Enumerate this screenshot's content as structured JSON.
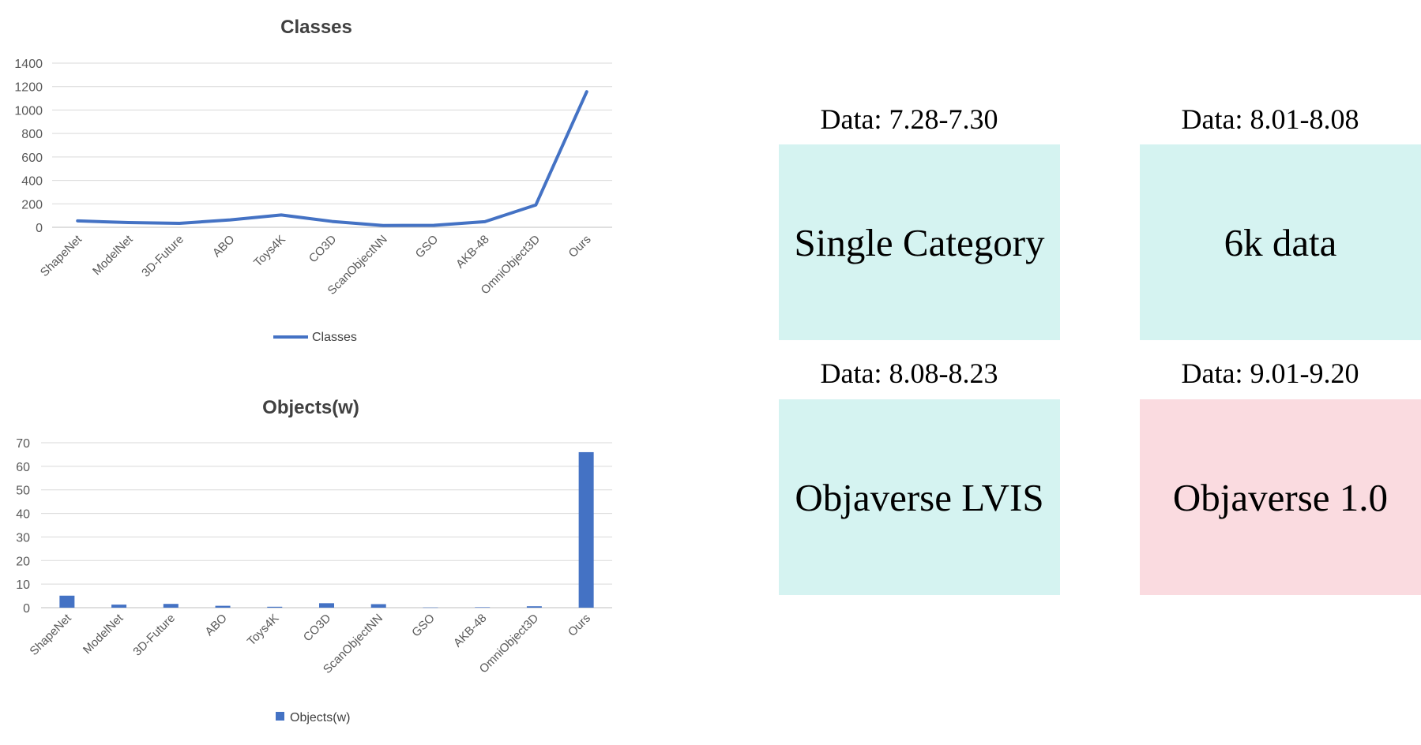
{
  "chart_data": [
    {
      "type": "line",
      "title": "Classes",
      "categories": [
        "ShapeNet",
        "ModelNet",
        "3D-Future",
        "ABO",
        "Toys4K",
        "CO3D",
        "ScanObjectNN",
        "GSO",
        "AKB-48",
        "OmniObject3D",
        "Ours"
      ],
      "series": [
        {
          "name": "Classes",
          "values": [
            55,
            40,
            34,
            63,
            105,
            50,
            15,
            17,
            48,
            190,
            1156
          ]
        }
      ],
      "yticks": [
        "0",
        "200",
        "400",
        "600",
        "800",
        "1000",
        "1200",
        "1400"
      ],
      "ylim": [
        0,
        1400
      ],
      "legend": "bottom",
      "grid": true,
      "color": "#4472c4"
    },
    {
      "type": "bar",
      "title": "Objects(w)",
      "categories": [
        "ShapeNet",
        "ModelNet",
        "3D-Future",
        "ABO",
        "Toys4K",
        "CO3D",
        "ScanObjectNN",
        "GSO",
        "AKB-48",
        "OmniObject3D",
        "Ours"
      ],
      "series": [
        {
          "name": "Objects(w)",
          "values": [
            5.1,
            1.3,
            1.6,
            0.8,
            0.4,
            1.9,
            1.5,
            0.1,
            0.2,
            0.6,
            66
          ]
        }
      ],
      "yticks": [
        "0",
        "10",
        "20",
        "30",
        "40",
        "50",
        "60",
        "70"
      ],
      "ylim": [
        0,
        70
      ],
      "legend": "bottom",
      "grid": true,
      "color": "#4472c4"
    }
  ],
  "timeline": [
    {
      "label": "Data: 7.28-7.30",
      "text": "Single Category",
      "color": "#d5f3f1"
    },
    {
      "label": "Data: 8.01-8.08",
      "text": "6k data",
      "color": "#d5f3f1"
    },
    {
      "label": "Data: 8.08-8.23",
      "text": "Objaverse LVIS",
      "color": "#d5f3f1"
    },
    {
      "label": "Data: 9.01-9.20",
      "text": "Objaverse 1.0",
      "color": "#fadbe0"
    }
  ]
}
